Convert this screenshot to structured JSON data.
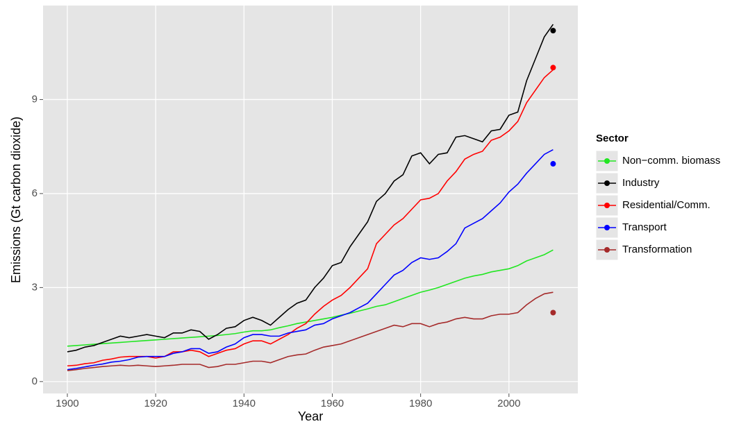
{
  "chart_data": {
    "type": "line",
    "x_label": "Year",
    "y_label": "Emissions (Gt carbon dioxide)",
    "legend_title": "Sector",
    "x": [
      1900,
      1902,
      1904,
      1906,
      1908,
      1910,
      1912,
      1914,
      1916,
      1918,
      1920,
      1922,
      1924,
      1926,
      1928,
      1930,
      1932,
      1934,
      1936,
      1938,
      1940,
      1942,
      1944,
      1946,
      1948,
      1950,
      1952,
      1954,
      1956,
      1958,
      1960,
      1962,
      1964,
      1966,
      1968,
      1970,
      1972,
      1974,
      1976,
      1978,
      1980,
      1982,
      1984,
      1986,
      1988,
      1990,
      1992,
      1994,
      1996,
      1998,
      2000,
      2002,
      2004,
      2006,
      2008,
      2010
    ],
    "marker_x": 2010,
    "series": [
      {
        "name": "Non−comm. biomass",
        "color": "#22e622",
        "values": [
          1.13,
          1.15,
          1.17,
          1.19,
          1.21,
          1.23,
          1.25,
          1.27,
          1.29,
          1.31,
          1.33,
          1.35,
          1.37,
          1.39,
          1.41,
          1.43,
          1.45,
          1.47,
          1.5,
          1.53,
          1.58,
          1.62,
          1.62,
          1.65,
          1.72,
          1.78,
          1.85,
          1.9,
          1.95,
          2.0,
          2.05,
          2.12,
          2.18,
          2.25,
          2.32,
          2.4,
          2.45,
          2.55,
          2.65,
          2.75,
          2.85,
          2.92,
          3.0,
          3.1,
          3.2,
          3.3,
          3.37,
          3.42,
          3.5,
          3.55,
          3.6,
          3.7,
          3.85,
          3.95,
          4.05,
          4.2
        ]
      },
      {
        "name": "Industry",
        "color": "#000000",
        "marker": 11.2,
        "values": [
          0.95,
          1.0,
          1.1,
          1.15,
          1.25,
          1.35,
          1.45,
          1.4,
          1.45,
          1.5,
          1.45,
          1.4,
          1.55,
          1.55,
          1.65,
          1.6,
          1.35,
          1.5,
          1.7,
          1.75,
          1.95,
          2.05,
          1.95,
          1.8,
          2.05,
          2.3,
          2.5,
          2.6,
          3.0,
          3.3,
          3.7,
          3.8,
          4.3,
          4.7,
          5.1,
          5.75,
          6.0,
          6.4,
          6.6,
          7.2,
          7.3,
          6.95,
          7.25,
          7.3,
          7.8,
          7.85,
          7.75,
          7.65,
          8.0,
          8.05,
          8.5,
          8.6,
          9.6,
          10.3,
          11.0,
          11.4
        ]
      },
      {
        "name": "Residential/Comm.",
        "color": "#ff0000",
        "marker": 10.02,
        "values": [
          0.5,
          0.52,
          0.57,
          0.6,
          0.68,
          0.72,
          0.78,
          0.8,
          0.8,
          0.8,
          0.75,
          0.8,
          0.95,
          0.95,
          1.0,
          0.95,
          0.8,
          0.9,
          1.0,
          1.05,
          1.2,
          1.3,
          1.3,
          1.2,
          1.35,
          1.5,
          1.7,
          1.85,
          2.15,
          2.4,
          2.6,
          2.75,
          3.0,
          3.3,
          3.6,
          4.4,
          4.7,
          5.0,
          5.2,
          5.5,
          5.8,
          5.85,
          6.0,
          6.4,
          6.7,
          7.1,
          7.25,
          7.35,
          7.7,
          7.8,
          8.0,
          8.3,
          8.9,
          9.3,
          9.7,
          9.95
        ]
      },
      {
        "name": "Transport",
        "color": "#0000ff",
        "marker": 6.95,
        "values": [
          0.38,
          0.42,
          0.47,
          0.52,
          0.56,
          0.62,
          0.65,
          0.7,
          0.78,
          0.8,
          0.8,
          0.8,
          0.9,
          0.95,
          1.05,
          1.05,
          0.9,
          0.95,
          1.1,
          1.2,
          1.4,
          1.5,
          1.5,
          1.45,
          1.45,
          1.55,
          1.6,
          1.65,
          1.8,
          1.85,
          2.0,
          2.1,
          2.2,
          2.35,
          2.5,
          2.8,
          3.1,
          3.4,
          3.55,
          3.8,
          3.95,
          3.9,
          3.95,
          4.15,
          4.4,
          4.9,
          5.05,
          5.2,
          5.45,
          5.7,
          6.05,
          6.3,
          6.65,
          6.95,
          7.25,
          7.4
        ]
      },
      {
        "name": "Transformation",
        "color": "#a52a2a",
        "marker": 2.2,
        "values": [
          0.35,
          0.38,
          0.42,
          0.45,
          0.48,
          0.5,
          0.52,
          0.5,
          0.52,
          0.5,
          0.48,
          0.5,
          0.52,
          0.55,
          0.55,
          0.55,
          0.45,
          0.48,
          0.55,
          0.55,
          0.6,
          0.65,
          0.65,
          0.6,
          0.7,
          0.8,
          0.85,
          0.88,
          1.0,
          1.1,
          1.15,
          1.2,
          1.3,
          1.4,
          1.5,
          1.6,
          1.7,
          1.8,
          1.75,
          1.85,
          1.85,
          1.75,
          1.85,
          1.9,
          2.0,
          2.05,
          2.0,
          2.0,
          2.1,
          2.15,
          2.15,
          2.2,
          2.45,
          2.65,
          2.8,
          2.85
        ]
      }
    ],
    "xlim": [
      1894.5,
      2015.6
    ],
    "xticks": [
      1900,
      1920,
      1940,
      1960,
      1980,
      2000
    ],
    "ylim": [
      -0.38,
      12.0
    ],
    "yticks": [
      0,
      3,
      6,
      9
    ],
    "grid": true,
    "legend_position": "right",
    "panel_color": "#e5e5e5"
  }
}
